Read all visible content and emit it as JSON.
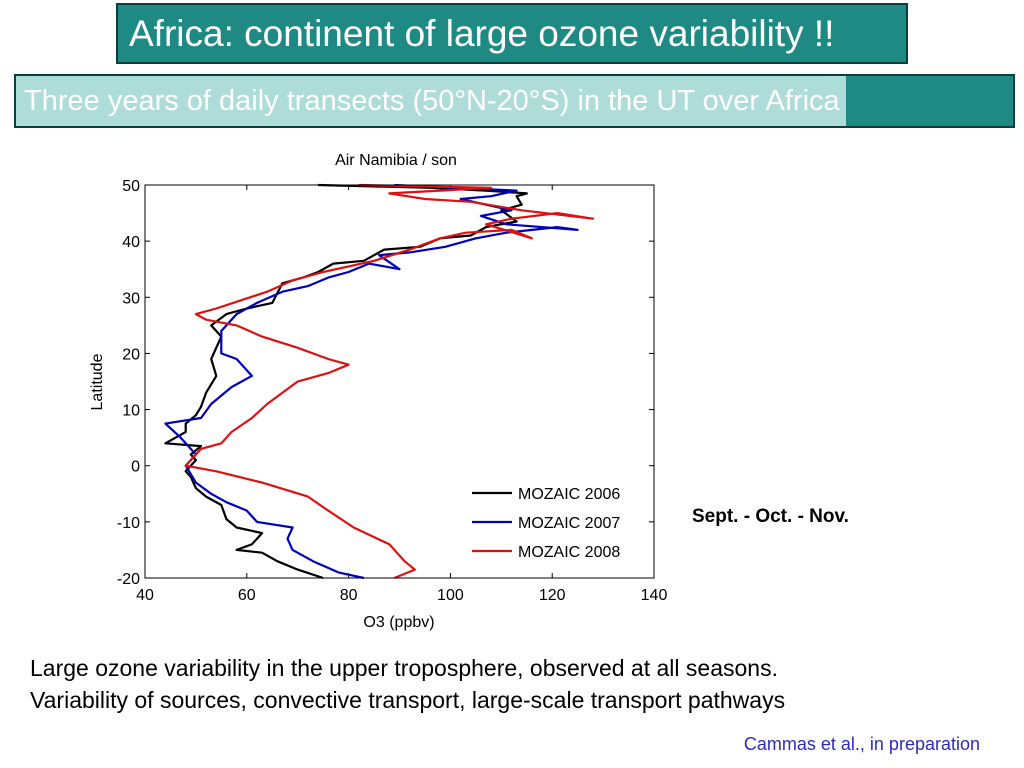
{
  "slide": {
    "title": "Africa: continent of large ozone variability !!",
    "subtitle": "Three years of daily transects (50°N-20°S) in the UT over Africa",
    "season_label": "Sept. - Oct. - Nov.",
    "summary_lines": [
      "Large ozone variability in the upper troposphere, observed at all seasons.",
      "Variability of sources, convective transport, large-scale transport pathways"
    ],
    "citation": "Cammas et al., in preparation"
  },
  "colors": {
    "title_bg": "#1f8a84",
    "subtitle_highlight": "#aeddd9",
    "citation": "#2d2db4"
  },
  "chart_data": {
    "type": "line",
    "title": "Air Namibia / son",
    "xlabel": "O3 (ppbv)",
    "ylabel": "Latitude",
    "xlim": [
      40,
      140
    ],
    "ylim": [
      -20,
      50
    ],
    "xticks": [
      40,
      60,
      80,
      100,
      120,
      140
    ],
    "yticks": [
      50,
      40,
      30,
      20,
      10,
      0,
      -10,
      -20
    ],
    "grid": false,
    "legend_position": "bottom-right",
    "series": [
      {
        "name": "MOZAIC 2006",
        "color": "#000000",
        "points": [
          [
            75,
            -20
          ],
          [
            70,
            -18.5
          ],
          [
            66,
            -17
          ],
          [
            63,
            -15.5
          ],
          [
            58,
            -15
          ],
          [
            61,
            -14
          ],
          [
            63,
            -12
          ],
          [
            58,
            -11
          ],
          [
            56,
            -9.5
          ],
          [
            55,
            -7
          ],
          [
            52,
            -5.5
          ],
          [
            50,
            -4
          ],
          [
            49,
            -2
          ],
          [
            48,
            -1
          ],
          [
            50,
            1
          ],
          [
            49,
            2
          ],
          [
            51,
            3.5
          ],
          [
            44,
            4
          ],
          [
            48,
            6
          ],
          [
            48,
            7.5
          ],
          [
            50,
            9
          ],
          [
            51,
            10.5
          ],
          [
            52,
            13
          ],
          [
            54,
            16
          ],
          [
            53,
            19
          ],
          [
            55,
            23
          ],
          [
            53,
            25
          ],
          [
            56,
            27
          ],
          [
            60,
            28
          ],
          [
            65,
            29
          ],
          [
            67,
            32.5
          ],
          [
            71,
            33.5
          ],
          [
            74,
            34.5
          ],
          [
            77,
            36
          ],
          [
            83,
            36.5
          ],
          [
            87,
            38.5
          ],
          [
            94,
            39
          ],
          [
            98,
            40.5
          ],
          [
            104,
            41
          ],
          [
            107,
            42.5
          ],
          [
            113,
            43.5
          ],
          [
            110,
            45.5
          ],
          [
            114,
            46.5
          ],
          [
            113,
            48
          ],
          [
            115,
            48.5
          ],
          [
            107,
            49
          ],
          [
            96,
            49.5
          ],
          [
            74,
            50
          ]
        ]
      },
      {
        "name": "MOZAIC 2007",
        "color": "#0000bb",
        "points": [
          [
            83,
            -20
          ],
          [
            78,
            -19
          ],
          [
            73,
            -17
          ],
          [
            69,
            -15
          ],
          [
            68,
            -13
          ],
          [
            69,
            -11
          ],
          [
            62,
            -10
          ],
          [
            60,
            -8
          ],
          [
            56,
            -6.5
          ],
          [
            53,
            -5
          ],
          [
            50,
            -3
          ],
          [
            48,
            0
          ],
          [
            50,
            2
          ],
          [
            47,
            5
          ],
          [
            44,
            7.5
          ],
          [
            51,
            8.5
          ],
          [
            53,
            11
          ],
          [
            57,
            14
          ],
          [
            61,
            16
          ],
          [
            58,
            19
          ],
          [
            55,
            20
          ],
          [
            55,
            24
          ],
          [
            58,
            27
          ],
          [
            62,
            29
          ],
          [
            67,
            31
          ],
          [
            72,
            32
          ],
          [
            76,
            33.5
          ],
          [
            80,
            34.5
          ],
          [
            84,
            36
          ],
          [
            90,
            35
          ],
          [
            86,
            37.5
          ],
          [
            92,
            38
          ],
          [
            99,
            39
          ],
          [
            105,
            40.5
          ],
          [
            111,
            41.5
          ],
          [
            121,
            42.5
          ],
          [
            125,
            42
          ],
          [
            111,
            43
          ],
          [
            106,
            44.5
          ],
          [
            112,
            45.5
          ],
          [
            107,
            46.5
          ],
          [
            102,
            47.5
          ],
          [
            108,
            48
          ],
          [
            113,
            49
          ],
          [
            101,
            49.5
          ],
          [
            89,
            50
          ]
        ]
      },
      {
        "name": "MOZAIC 2008",
        "color": "#dd1111",
        "points": [
          [
            89,
            -20
          ],
          [
            93,
            -18.5
          ],
          [
            91,
            -17
          ],
          [
            88,
            -14
          ],
          [
            81,
            -11
          ],
          [
            76,
            -8
          ],
          [
            72,
            -5.5
          ],
          [
            63,
            -3
          ],
          [
            54,
            -1
          ],
          [
            48,
            0
          ],
          [
            51,
            3
          ],
          [
            55,
            4
          ],
          [
            57,
            6
          ],
          [
            61,
            8.5
          ],
          [
            64,
            11
          ],
          [
            67,
            13
          ],
          [
            70,
            15
          ],
          [
            76,
            16.5
          ],
          [
            80,
            18
          ],
          [
            76,
            19
          ],
          [
            70,
            21
          ],
          [
            63,
            23
          ],
          [
            58,
            25
          ],
          [
            52,
            26
          ],
          [
            50,
            27
          ],
          [
            54,
            28
          ],
          [
            59,
            29.5
          ],
          [
            64,
            31
          ],
          [
            69,
            33
          ],
          [
            75,
            34.5
          ],
          [
            80,
            35.5
          ],
          [
            85,
            36.5
          ],
          [
            92,
            38.5
          ],
          [
            98,
            40.5
          ],
          [
            103,
            41.5
          ],
          [
            112,
            42
          ],
          [
            116,
            40.5
          ],
          [
            107,
            43
          ],
          [
            112,
            44
          ],
          [
            121,
            45
          ],
          [
            128,
            44
          ],
          [
            114,
            45.5
          ],
          [
            104,
            47
          ],
          [
            95,
            47.5
          ],
          [
            88,
            48.5
          ],
          [
            98,
            49
          ],
          [
            108,
            49.5
          ],
          [
            82,
            50
          ]
        ]
      }
    ]
  }
}
